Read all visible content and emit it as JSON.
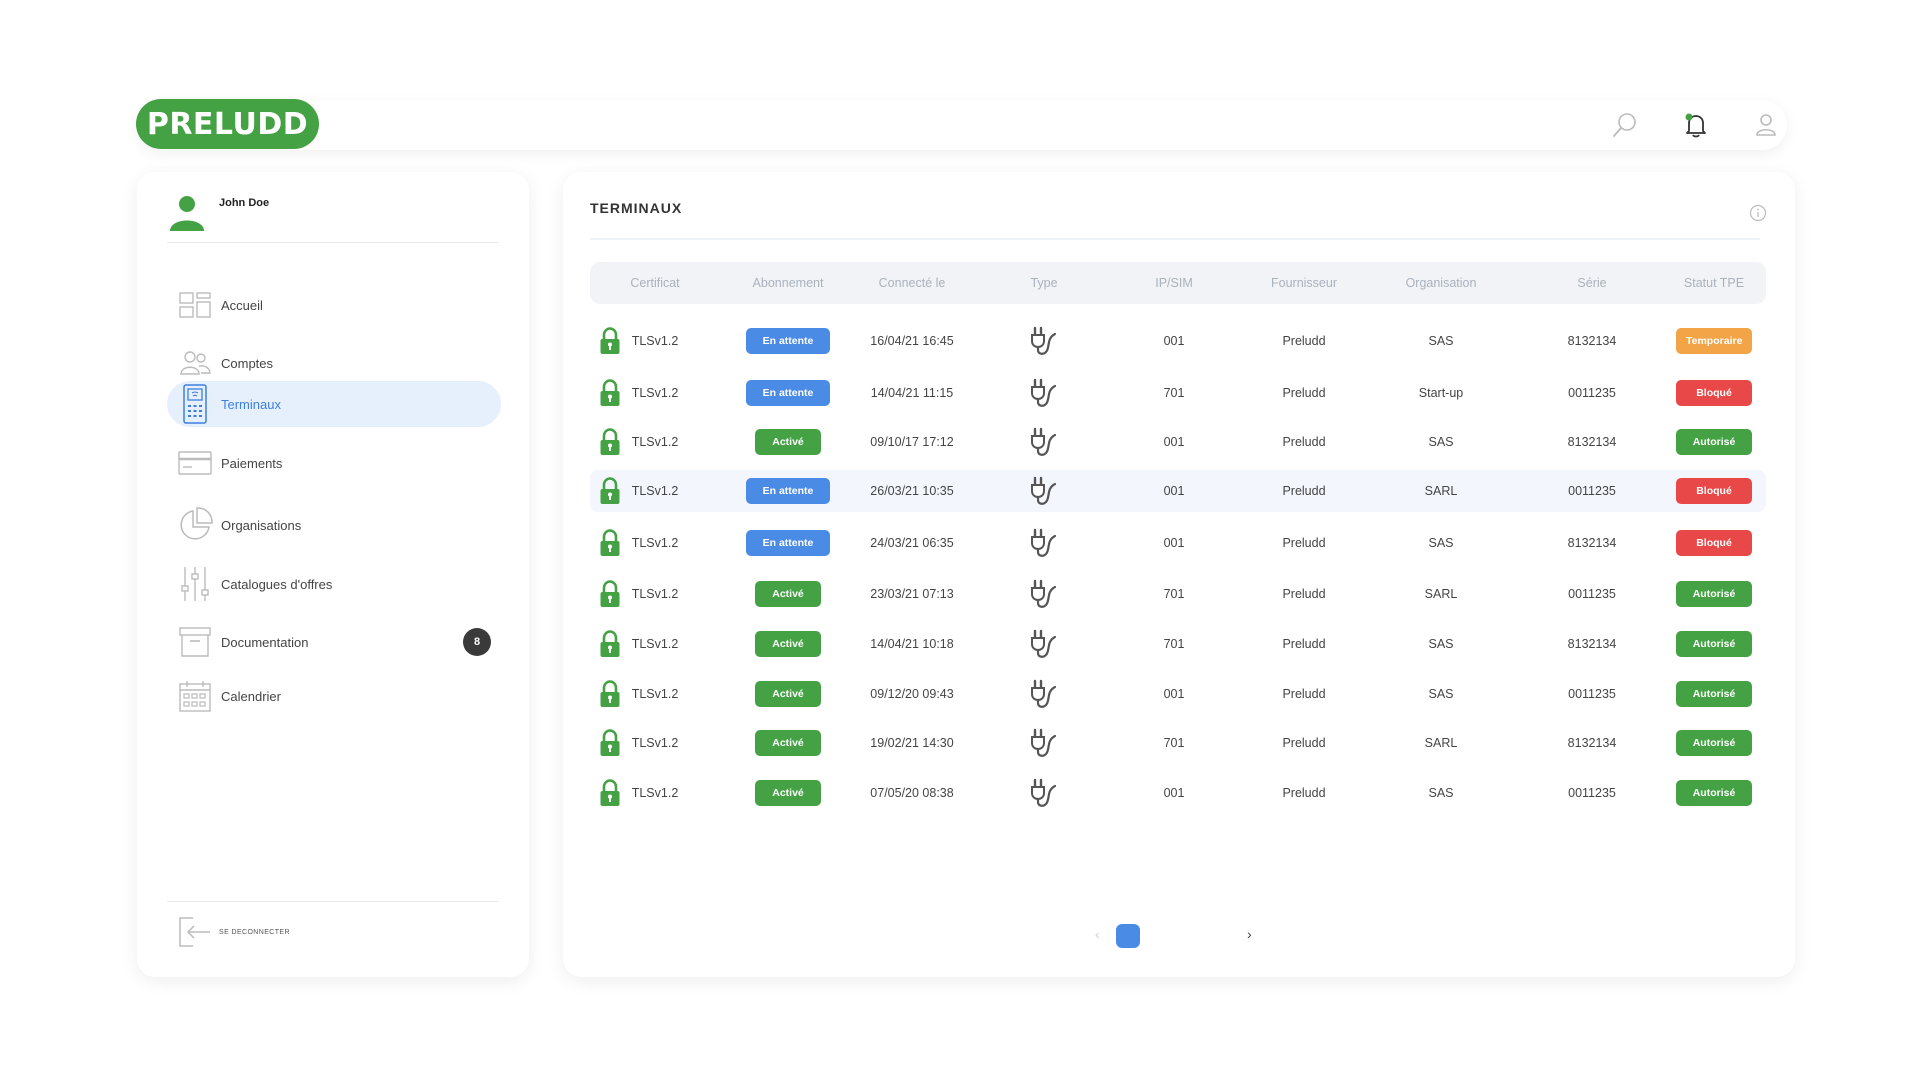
{
  "brand": {
    "logo": "PRELUDD"
  },
  "header": {
    "icons": [
      "search-icon",
      "bell-icon",
      "user-icon"
    ],
    "notification_dot": "#44a244"
  },
  "user": {
    "name": "John Doe"
  },
  "sidebar": {
    "items": [
      {
        "label": "Accueil",
        "icon": "grid-icon"
      },
      {
        "label": "Comptes",
        "icon": "users-icon"
      },
      {
        "label": "Terminaux",
        "icon": "terminal-icon",
        "active": true
      },
      {
        "label": "Paiements",
        "icon": "card-icon"
      },
      {
        "label": "Organisations",
        "icon": "pie-chart-icon"
      },
      {
        "label": "Catalogues d'offres",
        "icon": "sliders-icon"
      },
      {
        "label": "Documentation",
        "icon": "archive-icon",
        "badge": "8"
      },
      {
        "label": "Calendrier",
        "icon": "calendar-icon"
      }
    ],
    "logout": "SE DECONNECTER"
  },
  "main": {
    "title": "TERMINAUX",
    "columns": [
      "Certificat",
      "Abonnement",
      "Connecté le",
      "Type",
      "IP/SIM",
      "Fournisseur",
      "Organisation",
      "Série",
      "Statut TPE"
    ],
    "rows": [
      {
        "cert": "TLSv1.2",
        "abo": "En attente",
        "abo_kind": "blue",
        "date": "16/04/21 16:45",
        "ip": "001",
        "fournisseur": "Preludd",
        "org": "SAS",
        "serie": "8132134",
        "statut": "Temporaire",
        "statut_color": "#f2a446"
      },
      {
        "cert": "TLSv1.2",
        "abo": "En attente",
        "abo_kind": "blue",
        "date": "14/04/21 11:15",
        "ip": "701",
        "fournisseur": "Preludd",
        "org": "Start-up",
        "serie": "0011235",
        "statut": "Bloqué",
        "statut_color": "#e84848"
      },
      {
        "cert": "TLSv1.2",
        "abo": "Activé",
        "abo_kind": "green",
        "date": "09/10/17 17:12",
        "ip": "001",
        "fournisseur": "Preludd",
        "org": "SAS",
        "serie": "8132134",
        "statut": "Autorisé",
        "statut_color": "#44a244"
      },
      {
        "cert": "TLSv1.2",
        "abo": "En attente",
        "abo_kind": "blue",
        "date": "26/03/21 10:35",
        "ip": "001",
        "fournisseur": "Preludd",
        "org": "SARL",
        "serie": "0011235",
        "statut": "Bloqué",
        "statut_color": "#e84848",
        "highlight": true
      },
      {
        "cert": "TLSv1.2",
        "abo": "En attente",
        "abo_kind": "blue",
        "date": "24/03/21 06:35",
        "ip": "001",
        "fournisseur": "Preludd",
        "org": "SAS",
        "serie": "8132134",
        "statut": "Bloqué",
        "statut_color": "#e84848"
      },
      {
        "cert": "TLSv1.2",
        "abo": "Activé",
        "abo_kind": "green",
        "date": "23/03/21 07:13",
        "ip": "701",
        "fournisseur": "Preludd",
        "org": "SARL",
        "serie": "0011235",
        "statut": "Autorisé",
        "statut_color": "#44a244"
      },
      {
        "cert": "TLSv1.2",
        "abo": "Activé",
        "abo_kind": "green",
        "date": "14/04/21 10:18",
        "ip": "701",
        "fournisseur": "Preludd",
        "org": "SAS",
        "serie": "8132134",
        "statut": "Autorisé",
        "statut_color": "#44a244"
      },
      {
        "cert": "TLSv1.2",
        "abo": "Activé",
        "abo_kind": "green",
        "date": "09/12/20 09:43",
        "ip": "001",
        "fournisseur": "Preludd",
        "org": "SAS",
        "serie": "0011235",
        "statut": "Autorisé",
        "statut_color": "#44a244"
      },
      {
        "cert": "TLSv1.2",
        "abo": "Activé",
        "abo_kind": "green",
        "date": "19/02/21 14:30",
        "ip": "701",
        "fournisseur": "Preludd",
        "org": "SARL",
        "serie": "8132134",
        "statut": "Autorisé",
        "statut_color": "#44a244"
      },
      {
        "cert": "TLSv1.2",
        "abo": "Activé",
        "abo_kind": "green",
        "date": "07/05/20 08:38",
        "ip": "001",
        "fournisseur": "Preludd",
        "org": "SAS",
        "serie": "0011235",
        "statut": "Autorisé",
        "statut_color": "#44a244"
      }
    ],
    "pagination": {
      "prev": "‹",
      "next": "›"
    }
  },
  "colors": {
    "brand_green": "#44a244",
    "accent_blue": "#4a8be6"
  }
}
